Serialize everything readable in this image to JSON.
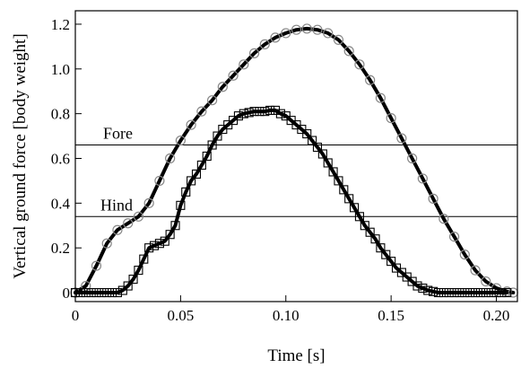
{
  "chart_data": {
    "type": "line",
    "xlabel": "Time [s]",
    "ylabel": "Vertical ground force [body weight]",
    "xlim": [
      0,
      0.21
    ],
    "ylim": [
      -0.04,
      1.26
    ],
    "x_ticks": [
      0,
      0.05,
      0.1,
      0.15,
      0.2
    ],
    "x_tick_labels": [
      "0",
      "0.05",
      "0.10",
      "0.15",
      "0.20"
    ],
    "y_ticks": [
      0,
      0.2,
      0.4,
      0.6,
      0.8,
      1.0,
      1.2
    ],
    "y_tick_labels": [
      "0",
      "0.2",
      "0.4",
      "0.6",
      "0.8",
      "1.0",
      "1.2"
    ],
    "grid": false,
    "legend": "none",
    "series": [
      {
        "marker": "circle",
        "color": "#000000",
        "marker_color": "#888888",
        "x": [
          0,
          0.005,
          0.01,
          0.015,
          0.02,
          0.025,
          0.03,
          0.035,
          0.04,
          0.045,
          0.05,
          0.055,
          0.06,
          0.065,
          0.07,
          0.075,
          0.08,
          0.085,
          0.09,
          0.095,
          0.1,
          0.105,
          0.11,
          0.115,
          0.12,
          0.125,
          0.13,
          0.135,
          0.14,
          0.145,
          0.15,
          0.155,
          0.16,
          0.165,
          0.17,
          0.175,
          0.18,
          0.185,
          0.19,
          0.195,
          0.2,
          0.205,
          0.208
        ],
        "y": [
          0,
          0.03,
          0.12,
          0.22,
          0.28,
          0.31,
          0.34,
          0.4,
          0.5,
          0.6,
          0.68,
          0.75,
          0.81,
          0.86,
          0.92,
          0.97,
          1.02,
          1.07,
          1.11,
          1.14,
          1.16,
          1.175,
          1.18,
          1.175,
          1.16,
          1.13,
          1.08,
          1.02,
          0.95,
          0.87,
          0.78,
          0.69,
          0.6,
          0.51,
          0.42,
          0.33,
          0.25,
          0.17,
          0.1,
          0.05,
          0.02,
          0.005,
          0
        ]
      },
      {
        "marker": "square",
        "color": "#000000",
        "marker_color": "#000000",
        "x": [
          0,
          0.0025,
          0.005,
          0.0075,
          0.01,
          0.0125,
          0.015,
          0.0175,
          0.02,
          0.0225,
          0.025,
          0.0275,
          0.03,
          0.0325,
          0.035,
          0.0375,
          0.04,
          0.0425,
          0.045,
          0.0475,
          0.05,
          0.0525,
          0.055,
          0.0575,
          0.06,
          0.0625,
          0.065,
          0.0675,
          0.07,
          0.0725,
          0.075,
          0.0775,
          0.08,
          0.0825,
          0.085,
          0.0875,
          0.09,
          0.0925,
          0.095,
          0.0975,
          0.1,
          0.1025,
          0.105,
          0.1075,
          0.11,
          0.1125,
          0.115,
          0.1175,
          0.12,
          0.1225,
          0.125,
          0.1275,
          0.13,
          0.1325,
          0.135,
          0.1375,
          0.14,
          0.1425,
          0.145,
          0.1475,
          0.15,
          0.1525,
          0.155,
          0.1575,
          0.16,
          0.1625,
          0.165,
          0.1675,
          0.17,
          0.1725,
          0.175,
          0.1775,
          0.18,
          0.1825,
          0.185,
          0.1875,
          0.19,
          0.1925,
          0.195,
          0.1975,
          0.2,
          0.2025,
          0.205
        ],
        "y": [
          0,
          0,
          0,
          0,
          0,
          0,
          0,
          0,
          0,
          0.01,
          0.03,
          0.06,
          0.1,
          0.15,
          0.2,
          0.21,
          0.22,
          0.23,
          0.26,
          0.3,
          0.39,
          0.45,
          0.5,
          0.53,
          0.57,
          0.61,
          0.66,
          0.7,
          0.73,
          0.75,
          0.77,
          0.79,
          0.8,
          0.805,
          0.81,
          0.81,
          0.81,
          0.815,
          0.815,
          0.8,
          0.79,
          0.77,
          0.75,
          0.73,
          0.71,
          0.68,
          0.65,
          0.62,
          0.58,
          0.54,
          0.5,
          0.46,
          0.42,
          0.38,
          0.34,
          0.3,
          0.27,
          0.24,
          0.2,
          0.17,
          0.14,
          0.11,
          0.09,
          0.07,
          0.05,
          0.03,
          0.02,
          0.01,
          0.005,
          0,
          0,
          0,
          0,
          0,
          0,
          0,
          0,
          0,
          0,
          0,
          0,
          0,
          0
        ]
      }
    ],
    "reference_lines": [
      {
        "label": "Fore",
        "y": 0.66
      },
      {
        "label": "Hind",
        "y": 0.34
      }
    ]
  }
}
